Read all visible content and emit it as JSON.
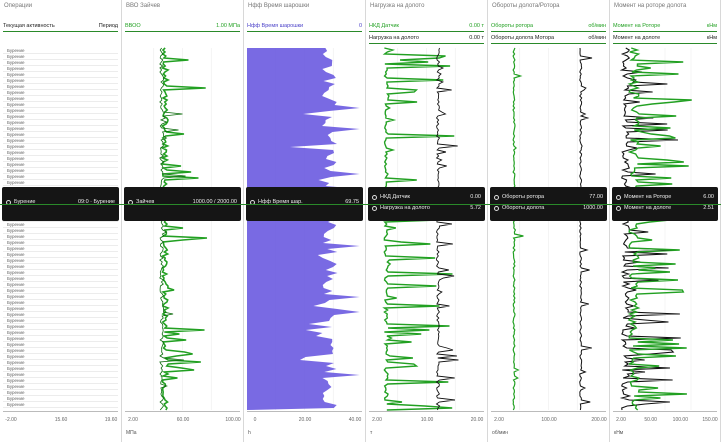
{
  "colors": {
    "green": "#22a022",
    "dark": "#151515",
    "blue": "#6a5ae0",
    "rowline": "#2a8a2a"
  },
  "panels": [
    {
      "id": "ops",
      "title": "Операции",
      "legend": [
        {
          "name": "Текущая активность",
          "value": "Период"
        }
      ],
      "tooltip": [
        {
          "name": "Бурение",
          "value": "09:0 · Бурение"
        }
      ],
      "ticks": [
        "-2.00",
        "15.60",
        "19.60"
      ],
      "unit": "",
      "op_label": "Бурение"
    },
    {
      "id": "rpm",
      "title": "ВВО Зайчев",
      "legend": [
        {
          "name": "ВВОО",
          "value": "1.00 МПа",
          "color": "green"
        }
      ],
      "tooltip": [
        {
          "name": "Зайчев",
          "value": "1000.00 / 2000.00"
        }
      ],
      "ticks": [
        "2.00",
        "60.00",
        "100.00"
      ],
      "unit": "МПа"
    },
    {
      "id": "wob",
      "title": "Нфф Время шарошки",
      "legend": [
        {
          "name": "Нфф Время шарошки",
          "value": "0",
          "color": "blue"
        }
      ],
      "tooltip": [
        {
          "name": "Нфф Время шар.",
          "value": "69.75"
        }
      ],
      "ticks": [
        "0",
        "20.00",
        "40.00"
      ],
      "unit": "h"
    },
    {
      "id": "load",
      "title": "Нагрузка на долото",
      "legend": [
        {
          "name": "НКД Датчик",
          "value": "0.00 т",
          "color": "green"
        },
        {
          "name": "Нагрузка на долото",
          "value": "0.00 т",
          "color": "dark"
        }
      ],
      "tooltip": [
        {
          "name": "НКД Датчик",
          "value": "0.00"
        },
        {
          "name": "Нагрузка на долото",
          "value": "5.72"
        }
      ],
      "ticks": [
        "2.00",
        "10.00",
        "20.00"
      ],
      "unit": "т"
    },
    {
      "id": "rot",
      "title": "Обороты долота/Ротора",
      "legend": [
        {
          "name": "Обороты ротора",
          "value": "об/мин",
          "color": "green"
        },
        {
          "name": "Обороты долота Мотора",
          "value": "об/мин",
          "color": "dark"
        }
      ],
      "tooltip": [
        {
          "name": "Обороты ротора",
          "value": "77.00"
        },
        {
          "name": "Обороты долота",
          "value": "1000.00"
        }
      ],
      "ticks": [
        "2.00",
        "100.00",
        "200.00"
      ],
      "unit": "об/мин"
    },
    {
      "id": "torque",
      "title": "Момент на роторе долота",
      "legend": [
        {
          "name": "Момент на Роторе",
          "value": "кНм",
          "color": "green"
        },
        {
          "name": "Момент на долоте",
          "value": "кНм",
          "color": "dark"
        }
      ],
      "tooltip": [
        {
          "name": "Момент на Роторе",
          "value": "6.00"
        },
        {
          "name": "Момент на долоте",
          "value": "2.51"
        }
      ],
      "ticks": [
        "2.00",
        "50.00",
        "100.00",
        "150.00"
      ],
      "unit": "кНм"
    }
  ]
}
